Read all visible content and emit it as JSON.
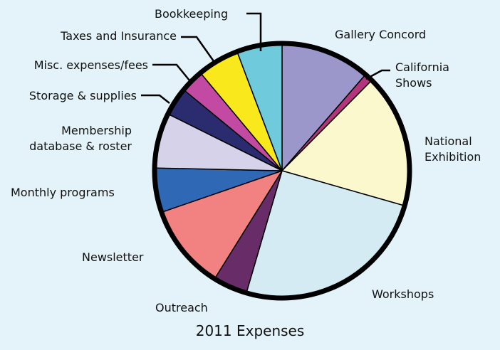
{
  "chart_data": {
    "type": "pie",
    "title": "2011 Expenses",
    "unit": "percent of total (estimated)",
    "slices": [
      {
        "label": "Gallery Concord",
        "value": 10.7,
        "color": "#9b97cb"
      },
      {
        "label": "California Shows",
        "value": 1.0,
        "color": "#b3357c"
      },
      {
        "label": "National Exhibition",
        "value": 16.0,
        "color": "#fcf8cd"
      },
      {
        "label": "Workshops",
        "value": 23.6,
        "color": "#d4ebf3"
      },
      {
        "label": "Outreach",
        "value": 4.1,
        "color": "#682c68"
      },
      {
        "label": "Newsletter",
        "value": 10.2,
        "color": "#f28282"
      },
      {
        "label": "Monthly programs",
        "value": 5.3,
        "color": "#2f68b4"
      },
      {
        "label": "Membership database & roster",
        "value": 6.6,
        "color": "#d5d2ea"
      },
      {
        "label": "Storage & supplies",
        "value": 3.4,
        "color": "#2b2c70"
      },
      {
        "label": "Misc. expenses/fees",
        "value": 2.8,
        "color": "#c24aa2"
      },
      {
        "label": "Taxes and Insurance",
        "value": 5.0,
        "color": "#f8e81c"
      },
      {
        "label": "Bookkeeping",
        "value": 5.4,
        "color": "#6fcbdc"
      }
    ]
  }
}
